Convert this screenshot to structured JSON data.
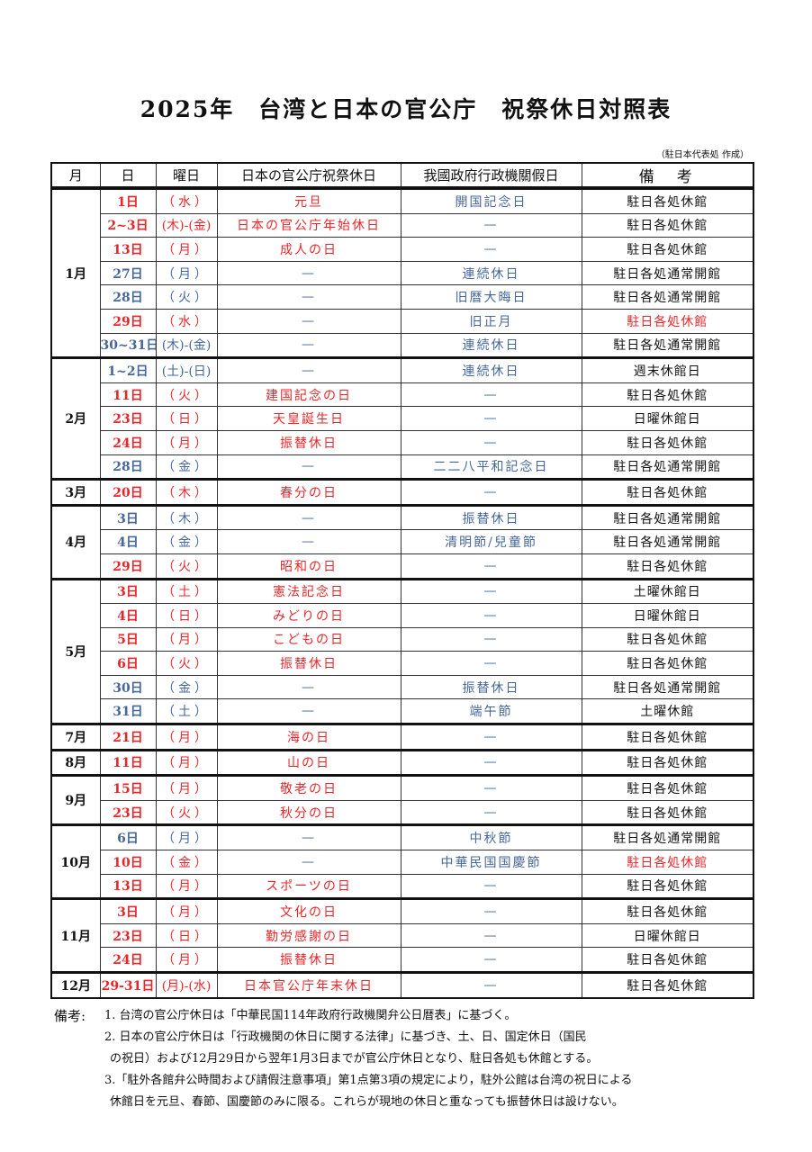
{
  "title": "2025年　台湾と日本の官公庁　祝祭休日対照表",
  "author": "（駐日本代表処 作成）",
  "headers": [
    "月",
    "日",
    "曜日",
    "日本の官公庁祝祭休日",
    "我國政府行政機關假日",
    "備　考"
  ],
  "colors": {
    "red": "#e8262a",
    "blue": "#46679a",
    "black": "#111111"
  },
  "months": [
    {
      "month": "1月",
      "rows": [
        {
          "day": "1日",
          "wd": "（水）",
          "jp": "元旦",
          "tw": "開国記念日",
          "rem": "駐日各処休館",
          "c": "r",
          "rc": "k"
        },
        {
          "day": "2~3日",
          "wd": "(木)-(金)",
          "jp": "日本の官公庁年始休日",
          "tw": "—",
          "rem": "駐日各処休館",
          "c": "r",
          "rc": "k"
        },
        {
          "day": "13日",
          "wd": "（月）",
          "jp": "成人の日",
          "tw": "—",
          "rem": "駐日各処休館",
          "c": "r",
          "rc": "k"
        },
        {
          "day": "27日",
          "wd": "（月）",
          "jp": "—",
          "tw": "連続休日",
          "rem": "駐日各処通常開館",
          "c": "b",
          "rc": "k"
        },
        {
          "day": "28日",
          "wd": "（火）",
          "jp": "—",
          "tw": "旧暦大晦日",
          "rem": "駐日各処通常開館",
          "c": "b",
          "rc": "k"
        },
        {
          "day": "29日",
          "wd": "（水）",
          "jp": "—",
          "tw": "旧正月",
          "rem": "駐日各処休館",
          "c": "r",
          "rc": "r"
        },
        {
          "day": "30~31日",
          "wd": "(木)-(金)",
          "jp": "—",
          "tw": "連続休日",
          "rem": "駐日各処通常開館",
          "c": "b",
          "rc": "k"
        }
      ]
    },
    {
      "month": "2月",
      "rows": [
        {
          "day": "1~2日",
          "wd": "(土)-(日)",
          "jp": "—",
          "tw": "連続休日",
          "rem": "週末休館日",
          "c": "b",
          "rc": "k"
        },
        {
          "day": "11日",
          "wd": "（火）",
          "jp": "建国記念の日",
          "tw": "—",
          "rem": "駐日各処休館",
          "c": "r",
          "rc": "k"
        },
        {
          "day": "23日",
          "wd": "（日）",
          "jp": "天皇誕生日",
          "tw": "—",
          "rem": "日曜休館日",
          "c": "r",
          "rc": "k"
        },
        {
          "day": "24日",
          "wd": "（月）",
          "jp": "振替休日",
          "tw": "—",
          "rem": "駐日各処休館",
          "c": "r",
          "rc": "k"
        },
        {
          "day": "28日",
          "wd": "（金）",
          "jp": "—",
          "tw": "二二八平和記念日",
          "rem": "駐日各処通常開館",
          "c": "b",
          "rc": "k"
        }
      ]
    },
    {
      "month": "3月",
      "rows": [
        {
          "day": "20日",
          "wd": "（木）",
          "jp": "春分の日",
          "tw": "—",
          "rem": "駐日各処休館",
          "c": "r",
          "rc": "k"
        }
      ]
    },
    {
      "month": "4月",
      "rows": [
        {
          "day": "3日",
          "wd": "（木）",
          "jp": "—",
          "tw": "振替休日",
          "rem": "駐日各処通常開館",
          "c": "b",
          "rc": "k"
        },
        {
          "day": "4日",
          "wd": "（金）",
          "jp": "—",
          "tw": "清明節/兒童節",
          "rem": "駐日各処通常開館",
          "c": "b",
          "rc": "k"
        },
        {
          "day": "29日",
          "wd": "（火）",
          "jp": "昭和の日",
          "tw": "—",
          "rem": "駐日各処休館",
          "c": "r",
          "rc": "k"
        }
      ]
    },
    {
      "month": "5月",
      "rows": [
        {
          "day": "3日",
          "wd": "（土）",
          "jp": "憲法記念日",
          "tw": "—",
          "rem": "土曜休館日",
          "c": "r",
          "rc": "k"
        },
        {
          "day": "4日",
          "wd": "（日）",
          "jp": "みどりの日",
          "tw": "—",
          "rem": "日曜休館日",
          "c": "r",
          "rc": "k"
        },
        {
          "day": "5日",
          "wd": "（月）",
          "jp": "こどもの日",
          "tw": "—",
          "rem": "駐日各処休館",
          "c": "r",
          "rc": "k"
        },
        {
          "day": "6日",
          "wd": "（火）",
          "jp": "振替休日",
          "tw": "—",
          "rem": "駐日各処休館",
          "c": "r",
          "rc": "k"
        },
        {
          "day": "30日",
          "wd": "（金）",
          "jp": "—",
          "tw": "振替休日",
          "rem": "駐日各処通常開館",
          "c": "b",
          "rc": "k"
        },
        {
          "day": "31日",
          "wd": "（土）",
          "jp": "—",
          "tw": "端午節",
          "rem": "土曜休館",
          "c": "b",
          "rc": "k"
        }
      ]
    },
    {
      "month": "7月",
      "rows": [
        {
          "day": "21日",
          "wd": "（月）",
          "jp": "海の日",
          "tw": "—",
          "rem": "駐日各処休館",
          "c": "r",
          "rc": "k"
        }
      ]
    },
    {
      "month": "8月",
      "rows": [
        {
          "day": "11日",
          "wd": "（月）",
          "jp": "山の日",
          "tw": "—",
          "rem": "駐日各処休館",
          "c": "r",
          "rc": "k"
        }
      ]
    },
    {
      "month": "9月",
      "rows": [
        {
          "day": "15日",
          "wd": "（月）",
          "jp": "敬老の日",
          "tw": "—",
          "rem": "駐日各処休館",
          "c": "r",
          "rc": "k"
        },
        {
          "day": "23日",
          "wd": "（火）",
          "jp": "秋分の日",
          "tw": "—",
          "rem": "駐日各処休館",
          "c": "r",
          "rc": "k"
        }
      ]
    },
    {
      "month": "10月",
      "rows": [
        {
          "day": "6日",
          "wd": "（月）",
          "jp": "—",
          "tw": "中秋節",
          "rem": "駐日各処通常開館",
          "c": "b",
          "rc": "k"
        },
        {
          "day": "10日",
          "wd": "（金）",
          "jp": "—",
          "tw": "中華民国国慶節",
          "rem": "駐日各処休館",
          "c": "r",
          "rc": "r"
        },
        {
          "day": "13日",
          "wd": "（月）",
          "jp": "スポーツの日",
          "tw": "—",
          "rem": "駐日各処休館",
          "c": "r",
          "rc": "k"
        }
      ]
    },
    {
      "month": "11月",
      "rows": [
        {
          "day": "3日",
          "wd": "（月）",
          "jp": "文化の日",
          "tw": "—",
          "rem": "駐日各処休館",
          "c": "r",
          "rc": "k"
        },
        {
          "day": "23日",
          "wd": "（日）",
          "jp": "勤労感謝の日",
          "tw": "—",
          "rem": "日曜休館日",
          "c": "r",
          "rc": "k"
        },
        {
          "day": "24日",
          "wd": "（月）",
          "jp": "振替休日",
          "tw": "—",
          "rem": "駐日各処休館",
          "c": "r",
          "rc": "k"
        }
      ]
    },
    {
      "month": "12月",
      "rows": [
        {
          "day": "29-31日",
          "wd": "(月)-(水)",
          "jp": "日本官公庁年末休日",
          "tw": "—",
          "rem": "駐日各処休館",
          "c": "r",
          "rc": "k"
        }
      ]
    }
  ],
  "notes": {
    "label": "備考:",
    "lines": [
      "1.  台湾の官公庁休日は「中華民国114年政府行政機関弁公日暦表」に基づく。",
      "2.  日本の官公庁休日は「行政機関の休日に関する法律」に基づき、土、日、国定休日（国民",
      "の祝日）および12月29日から翌年1月3日までが官公庁休日となり、駐日各処も休館とする。",
      "3.「駐外各館弁公時間および請假注意事項」第1点第3項の規定により，駐外公館は台湾の祝日による",
      "休館日を元旦、春節、国慶節のみに限る。これらが現地の休日と重なっても振替休日は設けない。"
    ]
  }
}
